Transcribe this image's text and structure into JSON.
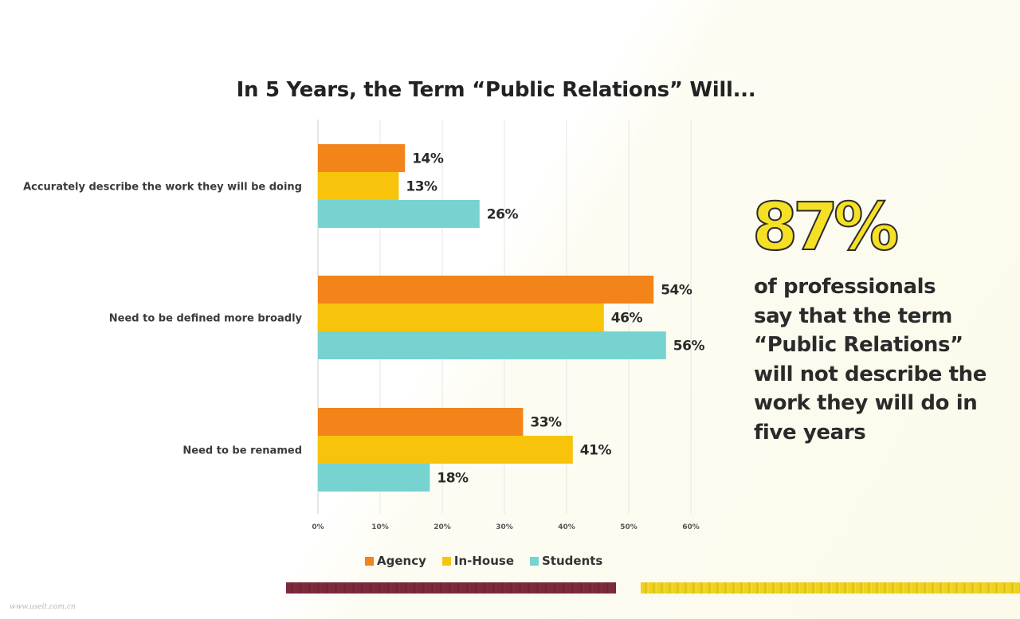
{
  "colors": {
    "agency": "#f28419",
    "in_house": "#f7c40b",
    "students": "#76d3cf",
    "highlight": "#f5e026"
  },
  "highlight": {
    "percent": "87%",
    "text_lines": [
      "of professionals",
      "say that the term",
      "“Public Relations”",
      "will not describe the",
      "work they will do in",
      "five years"
    ]
  },
  "watermark": "www.useit.com.cn",
  "chart_data": {
    "type": "bar",
    "orientation": "horizontal",
    "title": "In 5 Years, the Term “Public Relations” Will...",
    "categories": [
      "Accurately describe the work they will be doing",
      "Need to be defined more broadly",
      "Need to be renamed"
    ],
    "series": [
      {
        "name": "Agency",
        "values": [
          14,
          54,
          33
        ],
        "labels": [
          "14%",
          "54%",
          "33%"
        ],
        "color": "#f28419"
      },
      {
        "name": "In-House",
        "values": [
          13,
          46,
          41
        ],
        "labels": [
          "13%",
          "46%",
          "41%"
        ],
        "color": "#f7c40b"
      },
      {
        "name": "Students",
        "values": [
          26,
          56,
          18
        ],
        "labels": [
          "26%",
          "56%",
          "18%"
        ],
        "color": "#76d3cf"
      }
    ],
    "xlim": [
      0,
      60
    ],
    "xticks": [
      0,
      10,
      20,
      30,
      40,
      50,
      60
    ],
    "xtick_labels": [
      "0%",
      "10%",
      "20%",
      "30%",
      "40%",
      "50%",
      "60%"
    ],
    "xlabel": "",
    "ylabel": "",
    "grid": true,
    "legend": "bottom"
  }
}
